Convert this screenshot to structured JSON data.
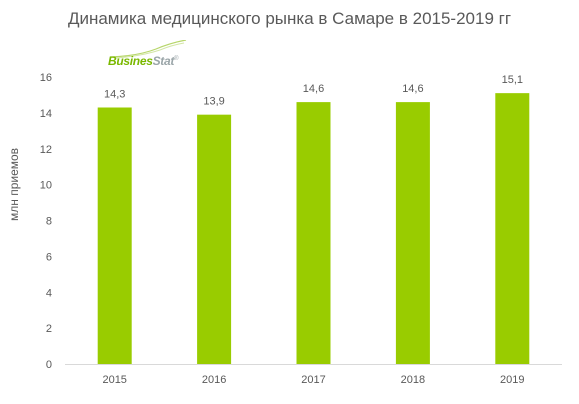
{
  "chart_data": {
    "type": "bar",
    "title": "Динамика медицинского рынка в Самаре в 2015-2019 гг",
    "ylabel": "млн приемов",
    "xlabel": "",
    "categories": [
      "2015",
      "2016",
      "2017",
      "2018",
      "2019"
    ],
    "values": [
      14.3,
      13.9,
      14.6,
      14.6,
      15.1
    ],
    "value_labels": [
      "14,3",
      "13,9",
      "14,6",
      "14,6",
      "15,1"
    ],
    "ylim": [
      0,
      16
    ],
    "yticks": [
      0,
      2,
      4,
      6,
      8,
      10,
      12,
      14,
      16
    ],
    "grid": false,
    "legend": "none",
    "bar_color": "#99cc00"
  },
  "logo": {
    "part1": "Busines",
    "part2": "Stat",
    "mark": "®"
  },
  "colors": {
    "text": "#595959",
    "axis": "#d9d9d9",
    "logo_green": "#7ab800",
    "logo_gray": "#9aa5a8"
  }
}
